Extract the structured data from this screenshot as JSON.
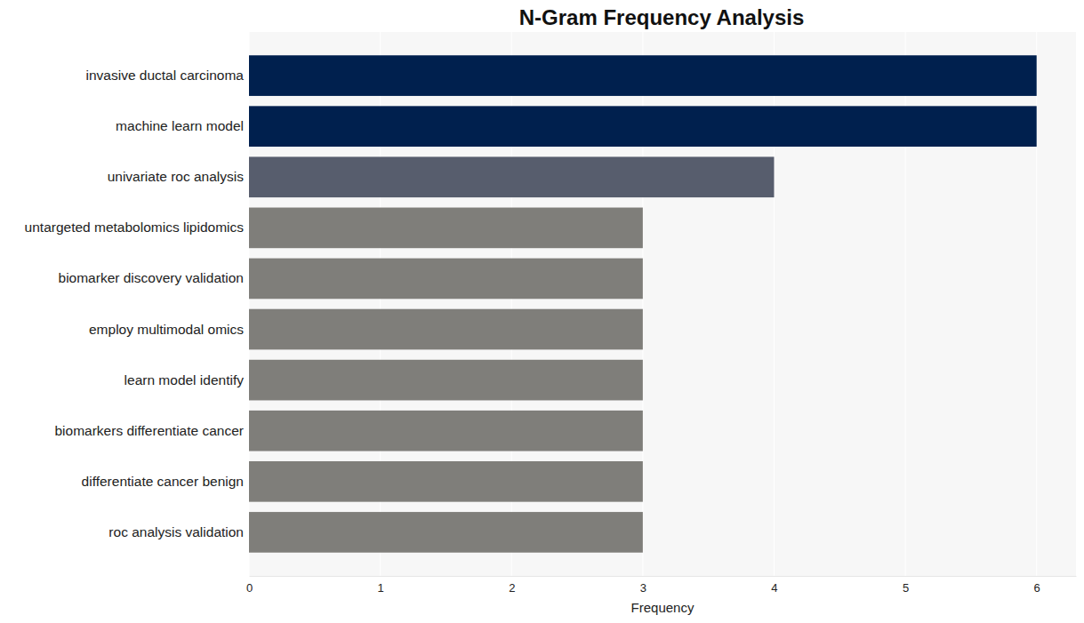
{
  "chart_data": {
    "type": "bar",
    "title": "N-Gram Frequency Analysis",
    "x_label": "Frequency",
    "orientation": "horizontal",
    "categories": [
      "invasive ductal carcinoma",
      "machine learn model",
      "univariate roc analysis",
      "untargeted metabolomics lipidomics",
      "biomarker discovery validation",
      "employ multimodal omics",
      "learn model identify",
      "biomarkers differentiate cancer",
      "differentiate cancer benign",
      "roc analysis validation"
    ],
    "values": [
      6,
      6,
      4,
      3,
      3,
      3,
      3,
      3,
      3,
      3
    ],
    "colors": [
      "#00204e",
      "#00204e",
      "#575d6d",
      "#7f7e7a",
      "#7f7e7a",
      "#7f7e7a",
      "#7f7e7a",
      "#7f7e7a",
      "#7f7e7a",
      "#7f7e7a"
    ],
    "xlim": [
      0,
      6.3
    ],
    "xticks": [
      0,
      1,
      2,
      3,
      4,
      5,
      6
    ],
    "grid": true
  }
}
